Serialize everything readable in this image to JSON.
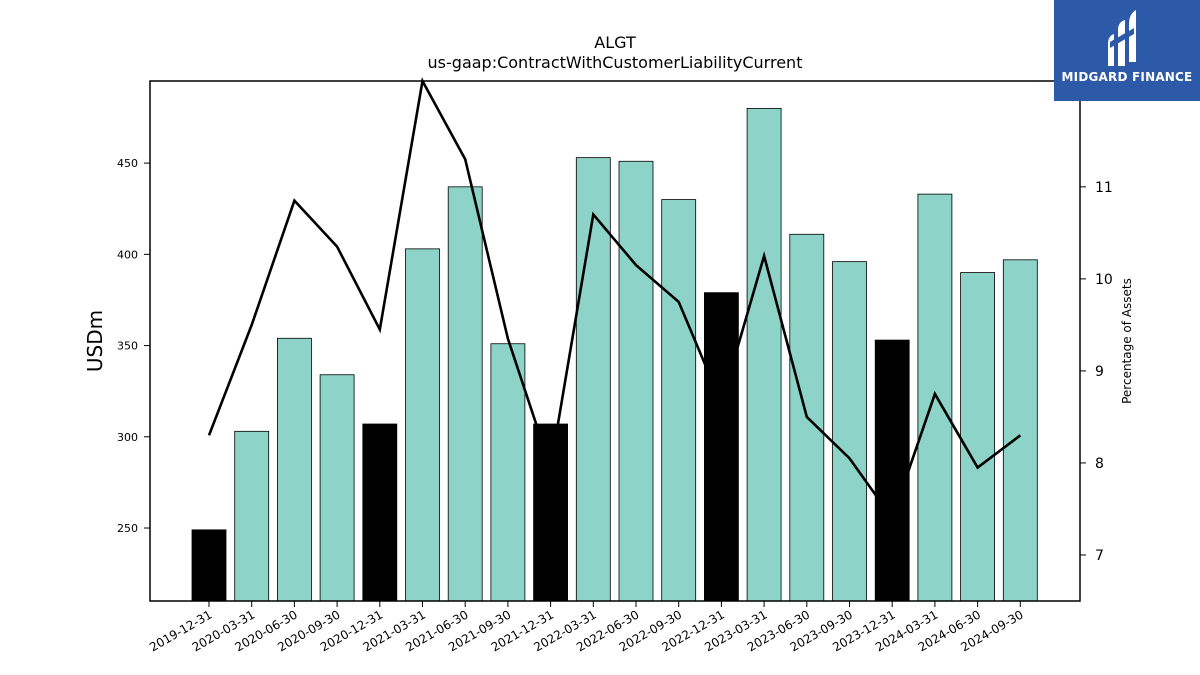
{
  "chart_data": {
    "type": "bar",
    "title": "ALGT",
    "subtitle": "us-gaap:ContractWithCustomerLiabilityCurrent",
    "ylabel": "USDm",
    "y2label": "Percentage of Assets",
    "ylim": [
      210,
      495
    ],
    "y2lim": [
      6.5,
      12.15
    ],
    "yticks": [
      250,
      300,
      350,
      400,
      450
    ],
    "y2ticks": [
      7,
      8,
      9,
      10,
      11
    ],
    "categories": [
      "2019-12-31",
      "2020-03-31",
      "2020-06-30",
      "2020-09-30",
      "2020-12-31",
      "2021-03-31",
      "2021-06-30",
      "2021-09-30",
      "2021-12-31",
      "2022-03-31",
      "2022-06-30",
      "2022-09-30",
      "2022-12-31",
      "2023-03-31",
      "2023-06-30",
      "2023-09-30",
      "2023-12-31",
      "2024-03-31",
      "2024-06-30",
      "2024-09-30"
    ],
    "series": [
      {
        "type": "bar",
        "values": [
          249,
          303,
          354,
          334,
          307,
          403,
          437,
          351,
          307,
          453,
          451,
          430,
          379,
          480,
          411,
          396,
          353,
          433,
          390,
          397
        ],
        "highlight": [
          true,
          false,
          false,
          false,
          true,
          false,
          false,
          false,
          true,
          false,
          false,
          false,
          true,
          false,
          false,
          false,
          true,
          false,
          false,
          false
        ]
      },
      {
        "type": "line",
        "axis": "right",
        "values": [
          8.3,
          9.5,
          10.85,
          10.35,
          9.45,
          12.15,
          11.3,
          9.35,
          7.95,
          10.7,
          10.15,
          9.75,
          8.65,
          10.25,
          8.5,
          8.05,
          7.4,
          8.75,
          7.95,
          8.3
        ]
      }
    ],
    "colors": {
      "bar": "#8dd3c7",
      "bar_highlight": "#000000",
      "line": "#000000",
      "edge": "#000000"
    },
    "grid": false
  },
  "logo": {
    "text": "MIDGARD FINANCE",
    "background": "#2c5aa8"
  }
}
